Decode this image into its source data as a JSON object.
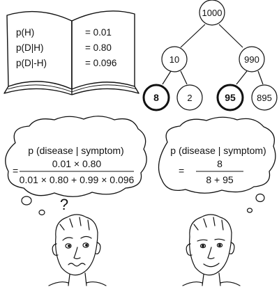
{
  "book": {
    "rows": [
      {
        "label": "p(H)",
        "value": "= 0.01"
      },
      {
        "label": "p(D|H)",
        "value": "= 0.80"
      },
      {
        "label": "p(D|-H)",
        "value": "= 0.096"
      }
    ]
  },
  "tree": {
    "root": "1000",
    "left": "10",
    "right": "990",
    "leaves": [
      "8",
      "2",
      "95",
      "895"
    ],
    "highlighted": [
      "8",
      "95"
    ]
  },
  "left_bubble": {
    "title": "p (disease | symptom)",
    "equals": "=",
    "numerator": "0.01 × 0.80",
    "denominator": "0.01 × 0.80 + 0.99 × 0.096",
    "question_mark": "?"
  },
  "right_bubble": {
    "title": "p (disease | symptom)",
    "equals": "=",
    "numerator": "8",
    "denominator": "8 + 95"
  },
  "colors": {
    "ink": "#111111",
    "paper": "#ffffff"
  }
}
